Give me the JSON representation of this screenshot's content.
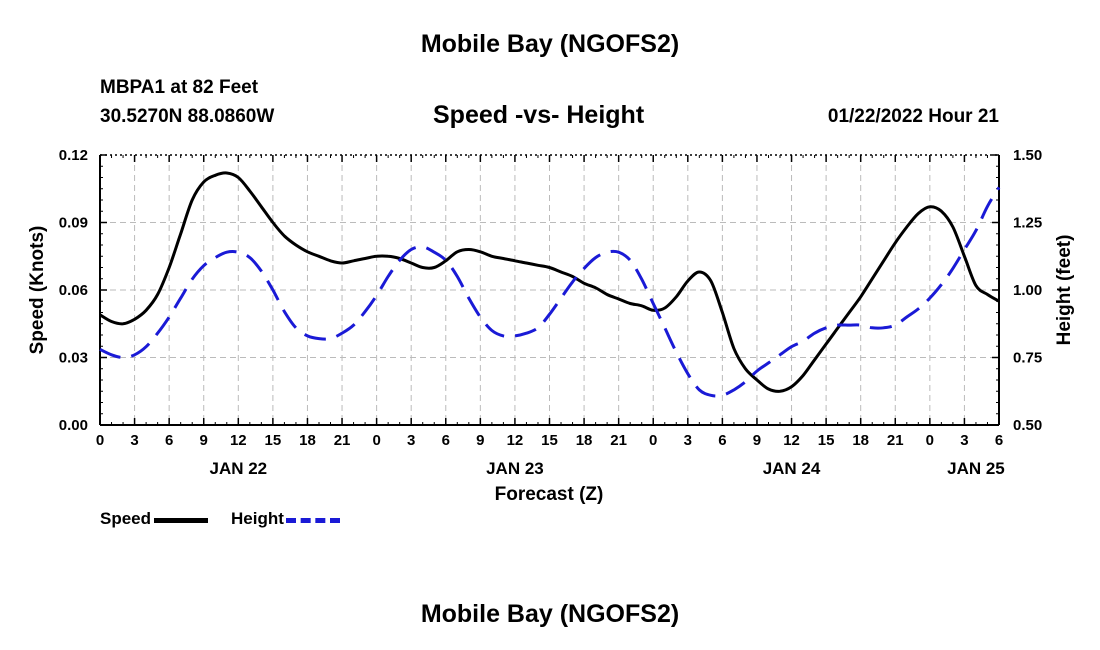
{
  "page": {
    "title": "Mobile Bay (NGOFS2)",
    "station": "MBPA1 at 82 Feet",
    "coords": "30.5270N  88.0860W",
    "plot_title": "Speed -vs- Height",
    "datetime": "01/22/2022 Hour 21",
    "bottom_title": "Mobile Bay (NGOFS2)"
  },
  "legend": {
    "speed_label": "Speed",
    "height_label": "Height"
  },
  "chart_data": {
    "type": "line",
    "xlabel": "Forecast (Z)",
    "ylabel_left": "Speed (Knots)",
    "ylabel_right": "Height (feet)",
    "x_range_hours": [
      0,
      78
    ],
    "x_tick_step_hours": 3,
    "x_tick_labels": [
      "0",
      "3",
      "6",
      "9",
      "12",
      "15",
      "18",
      "21",
      "0",
      "3",
      "6",
      "9",
      "12",
      "15",
      "18",
      "21",
      "0",
      "3",
      "6",
      "9",
      "12",
      "15",
      "18",
      "21",
      "0",
      "3",
      "6"
    ],
    "date_labels": [
      {
        "label": "JAN 22",
        "hour": 12
      },
      {
        "label": "JAN 23",
        "hour": 36
      },
      {
        "label": "JAN 24",
        "hour": 60
      },
      {
        "label": "JAN 25",
        "hour": 76
      }
    ],
    "ylim_left": [
      0,
      0.12
    ],
    "yticks_left": [
      "0.00",
      "0.03",
      "0.06",
      "0.09",
      "0.12"
    ],
    "ylim_right": [
      0.5,
      1.5
    ],
    "yticks_right": [
      "0.50",
      "0.75",
      "1.00",
      "1.25",
      "1.50"
    ],
    "grid": true,
    "colors": {
      "speed": "#000000",
      "height": "#1a1ad6",
      "grid": "#bbbbbb"
    },
    "series": [
      {
        "name": "Speed",
        "axis": "left",
        "style": "solid",
        "x": [
          0,
          1,
          2,
          3,
          4,
          5,
          6,
          7,
          8,
          9,
          10,
          11,
          12,
          13,
          14,
          15,
          16,
          17,
          18,
          19,
          20,
          21,
          22,
          23,
          24,
          25,
          26,
          27,
          28,
          29,
          30,
          31,
          32,
          33,
          34,
          35,
          36,
          37,
          38,
          39,
          40,
          41,
          42,
          43,
          44,
          45,
          46,
          47,
          48,
          49,
          50,
          51,
          52,
          53,
          54,
          55,
          56,
          57,
          58,
          59,
          60,
          61,
          62,
          63,
          64,
          65,
          66,
          67,
          68,
          69,
          70,
          71,
          72,
          73,
          74,
          75,
          76,
          77,
          78
        ],
        "values": [
          0.049,
          0.046,
          0.045,
          0.047,
          0.051,
          0.058,
          0.07,
          0.085,
          0.1,
          0.108,
          0.111,
          0.112,
          0.11,
          0.104,
          0.097,
          0.09,
          0.084,
          0.08,
          0.077,
          0.075,
          0.073,
          0.072,
          0.073,
          0.074,
          0.075,
          0.075,
          0.074,
          0.072,
          0.07,
          0.07,
          0.073,
          0.077,
          0.078,
          0.077,
          0.075,
          0.074,
          0.073,
          0.072,
          0.071,
          0.07,
          0.068,
          0.066,
          0.063,
          0.061,
          0.058,
          0.056,
          0.054,
          0.053,
          0.051,
          0.052,
          0.057,
          0.064,
          0.068,
          0.064,
          0.05,
          0.034,
          0.025,
          0.02,
          0.016,
          0.015,
          0.017,
          0.022,
          0.029,
          0.036,
          0.043,
          0.05,
          0.057,
          0.065,
          0.073,
          0.081,
          0.088,
          0.094,
          0.097,
          0.095,
          0.088,
          0.075,
          0.062,
          0.058,
          0.055
        ]
      },
      {
        "name": "Height",
        "axis": "right",
        "style": "dashed",
        "x": [
          0,
          1,
          2,
          3,
          4,
          5,
          6,
          7,
          8,
          9,
          10,
          11,
          12,
          13,
          14,
          15,
          16,
          17,
          18,
          19,
          20,
          21,
          22,
          23,
          24,
          25,
          26,
          27,
          28,
          29,
          30,
          31,
          32,
          33,
          34,
          35,
          36,
          37,
          38,
          39,
          40,
          41,
          42,
          43,
          44,
          45,
          46,
          47,
          48,
          49,
          50,
          51,
          52,
          53,
          54,
          55,
          56,
          57,
          58,
          59,
          60,
          61,
          62,
          63,
          64,
          65,
          66,
          67,
          68,
          69,
          70,
          71,
          72,
          73,
          74,
          75,
          76,
          77,
          78
        ],
        "values": [
          0.78,
          0.76,
          0.75,
          0.76,
          0.79,
          0.84,
          0.9,
          0.97,
          1.04,
          1.09,
          1.12,
          1.14,
          1.14,
          1.12,
          1.07,
          1.0,
          0.92,
          0.86,
          0.83,
          0.82,
          0.82,
          0.84,
          0.87,
          0.92,
          0.98,
          1.05,
          1.11,
          1.15,
          1.16,
          1.14,
          1.11,
          1.05,
          0.97,
          0.9,
          0.85,
          0.83,
          0.83,
          0.84,
          0.86,
          0.91,
          0.97,
          1.03,
          1.08,
          1.12,
          1.14,
          1.14,
          1.11,
          1.04,
          0.95,
          0.86,
          0.77,
          0.69,
          0.63,
          0.61,
          0.61,
          0.63,
          0.66,
          0.7,
          0.73,
          0.76,
          0.79,
          0.81,
          0.84,
          0.86,
          0.87,
          0.87,
          0.87,
          0.86,
          0.86,
          0.87,
          0.9,
          0.93,
          0.97,
          1.02,
          1.08,
          1.15,
          1.22,
          1.31,
          1.38
        ]
      }
    ]
  }
}
